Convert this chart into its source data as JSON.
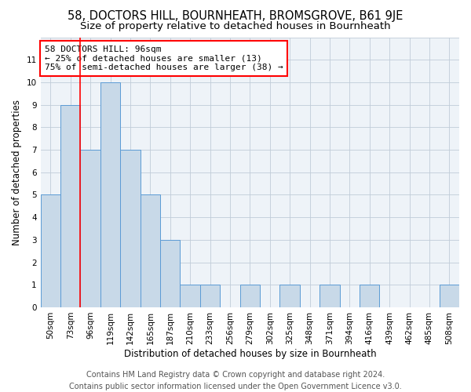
{
  "title": "58, DOCTORS HILL, BOURNHEATH, BROMSGROVE, B61 9JE",
  "subtitle": "Size of property relative to detached houses in Bournheath",
  "xlabel": "Distribution of detached houses by size in Bournheath",
  "ylabel": "Number of detached properties",
  "categories": [
    "50sqm",
    "73sqm",
    "96sqm",
    "119sqm",
    "142sqm",
    "165sqm",
    "187sqm",
    "210sqm",
    "233sqm",
    "256sqm",
    "279sqm",
    "302sqm",
    "325sqm",
    "348sqm",
    "371sqm",
    "394sqm",
    "416sqm",
    "439sqm",
    "462sqm",
    "485sqm",
    "508sqm"
  ],
  "values": [
    5,
    9,
    7,
    10,
    7,
    5,
    3,
    1,
    1,
    0,
    1,
    0,
    1,
    0,
    1,
    0,
    1,
    0,
    0,
    0,
    1
  ],
  "bar_color": "#c8d9e8",
  "bar_edge_color": "#5b9bd5",
  "highlight_line_index": 2,
  "annotation_line1": "58 DOCTORS HILL: 96sqm",
  "annotation_line2": "← 25% of detached houses are smaller (13)",
  "annotation_line3": "75% of semi-detached houses are larger (38) →",
  "annotation_box_color": "white",
  "annotation_box_edge_color": "red",
  "vline_color": "red",
  "ylim": [
    0,
    12
  ],
  "yticks": [
    0,
    1,
    2,
    3,
    4,
    5,
    6,
    7,
    8,
    9,
    10,
    11,
    12
  ],
  "footer_line1": "Contains HM Land Registry data © Crown copyright and database right 2024.",
  "footer_line2": "Contains public sector information licensed under the Open Government Licence v3.0.",
  "background_color": "#eef3f8",
  "grid_color": "#c0ccd8",
  "title_fontsize": 10.5,
  "subtitle_fontsize": 9.5,
  "axis_label_fontsize": 8.5,
  "tick_fontsize": 7.5,
  "annotation_fontsize": 8,
  "footer_fontsize": 7
}
